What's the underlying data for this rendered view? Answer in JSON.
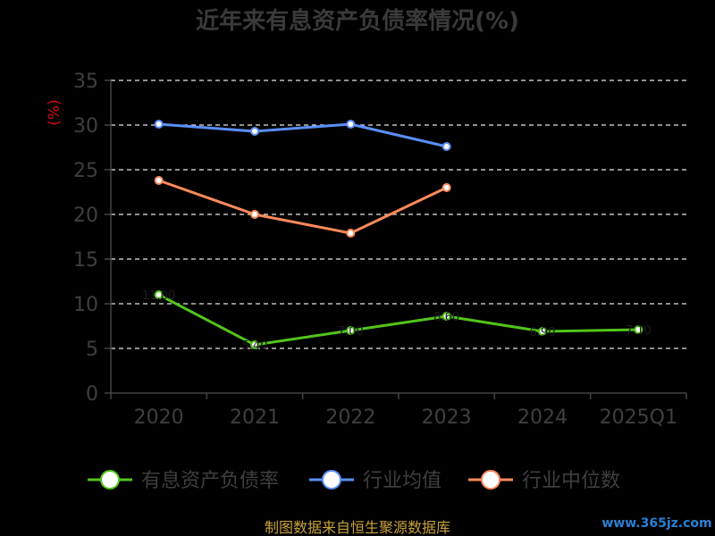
{
  "chart_data": {
    "type": "line",
    "title": "近年来有息资产负债率情况(%)",
    "ylabel": "(%)",
    "xlabel": "",
    "categories": [
      "2020",
      "2021",
      "2022",
      "2023",
      "2024",
      "2025Q1"
    ],
    "yticks": [
      "0",
      "5",
      "10",
      "15",
      "20",
      "25",
      "30",
      "35"
    ],
    "ylim": [
      0,
      35
    ],
    "grid": true,
    "legend_position": "bottom",
    "series": [
      {
        "name": "有息资产负债率",
        "color": "#52c41a",
        "values": [
          11.0,
          5.4,
          7.0,
          8.6,
          6.9,
          7.1
        ]
      },
      {
        "name": "行业均值",
        "color": "#5b8ff9",
        "values": [
          30.1,
          29.3,
          30.1,
          27.6,
          null,
          null
        ]
      },
      {
        "name": "行业中位数",
        "color": "#ff8a5b",
        "values": [
          23.8,
          20.0,
          17.9,
          23.0,
          null,
          null
        ]
      }
    ]
  },
  "source_text": "制图数据来自恒生聚源数据库",
  "watermark": "www.365jz.com"
}
